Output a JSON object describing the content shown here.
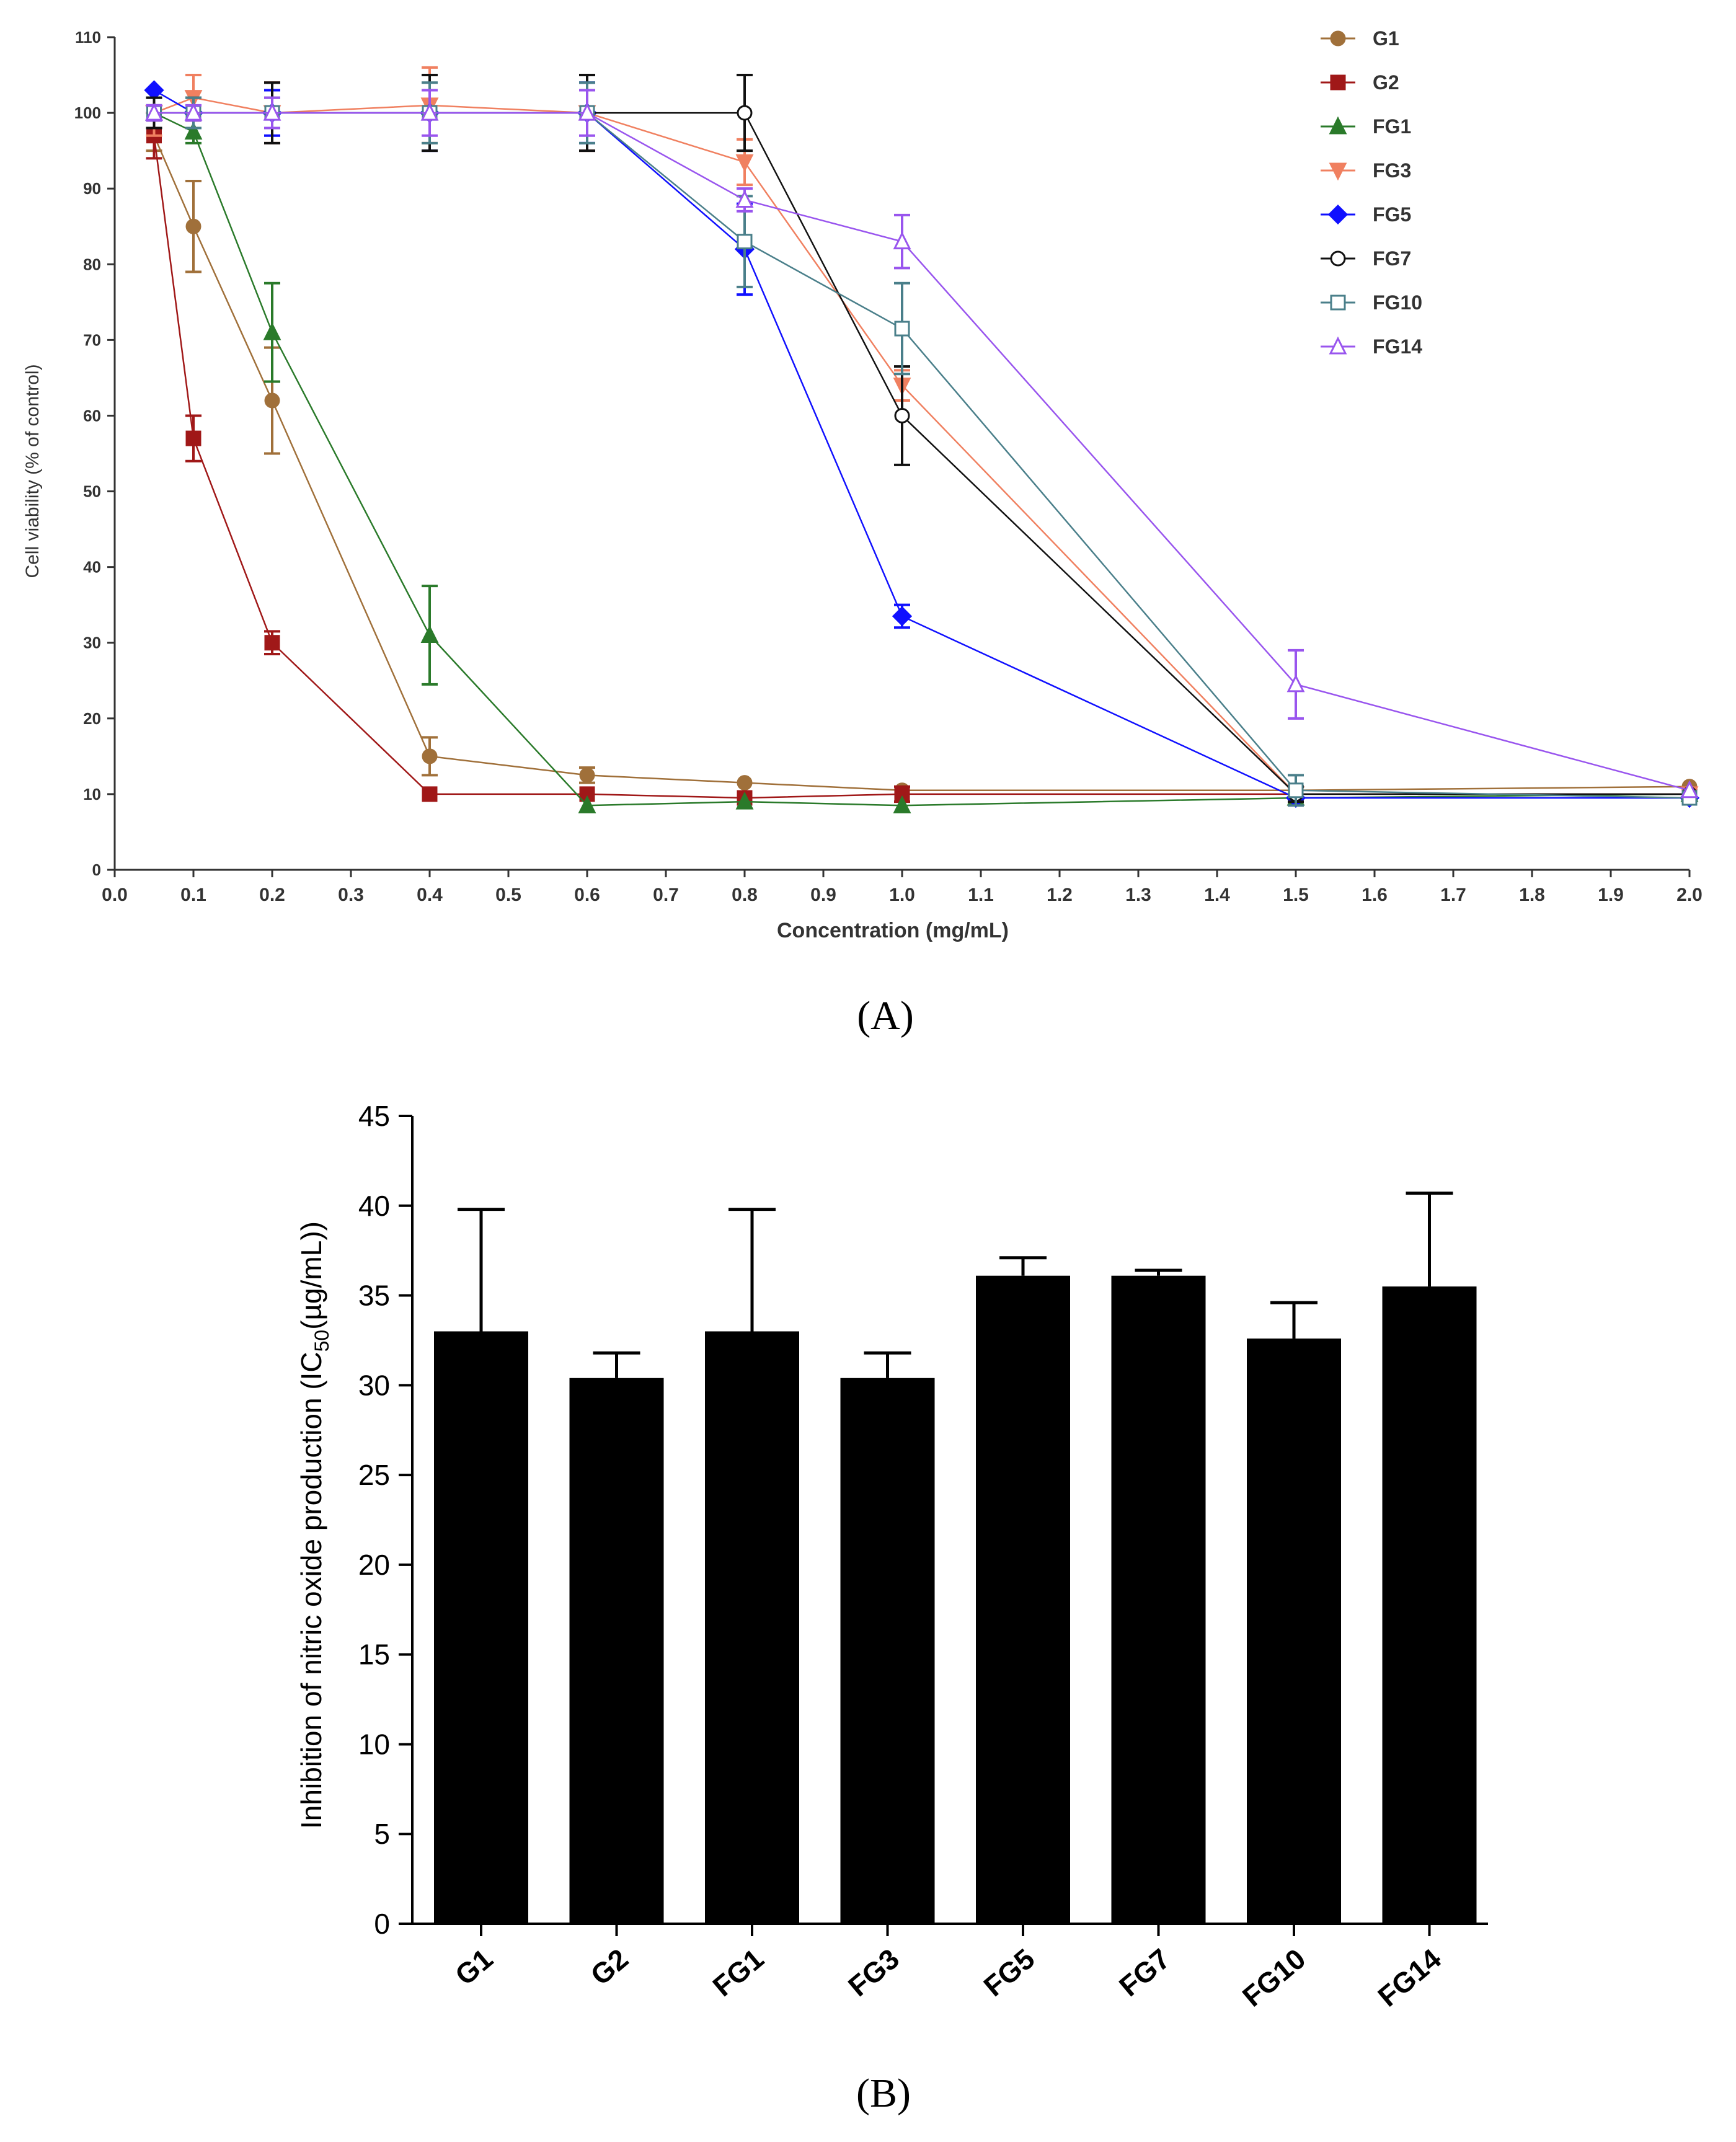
{
  "colors": {
    "G1": "#a0703a",
    "G2": "#a01818",
    "FG1": "#2a7a2a",
    "FG3": "#f08060",
    "FG5": "#1010ff",
    "FG7": "#111111",
    "FG10": "#4a7f8a",
    "FG14": "#9955ee",
    "bars": "#000000"
  },
  "chart_data": [
    {
      "type": "line",
      "panel_label": "(A)",
      "title": "",
      "xlabel": "Concentration (mg/mL)",
      "ylabel": "Cell viability (% of control)",
      "xlim": [
        0,
        2.0
      ],
      "ylim": [
        0,
        110
      ],
      "x_ticks": [
        "0.0",
        "0.1",
        "0.2",
        "0.3",
        "0.4",
        "0.5",
        "0.6",
        "0.7",
        "0.8",
        "0.9",
        "1.0",
        "1.1",
        "1.2",
        "1.3",
        "1.4",
        "1.5",
        "1.6",
        "1.7",
        "1.8",
        "1.9",
        "2.0"
      ],
      "y_ticks": [
        "0",
        "10",
        "20",
        "30",
        "40",
        "50",
        "60",
        "70",
        "80",
        "90",
        "100",
        "110"
      ],
      "legend_position": "top-right",
      "series": [
        {
          "name": "G1",
          "marker": "circle-filled",
          "x": [
            0.05,
            0.1,
            0.2,
            0.4,
            0.6,
            0.8,
            1.0,
            1.5,
            2.0
          ],
          "y": [
            97,
            85,
            62,
            15,
            12.5,
            11.5,
            10.5,
            10.5,
            11
          ],
          "err": [
            2,
            6,
            7,
            2.5,
            1,
            0,
            0,
            0,
            0
          ]
        },
        {
          "name": "G2",
          "marker": "square-filled",
          "x": [
            0.05,
            0.1,
            0.2,
            0.4,
            0.6,
            0.8,
            1.0,
            1.5,
            2.0
          ],
          "y": [
            97,
            57,
            30,
            10,
            10,
            9.5,
            10,
            10,
            10
          ],
          "err": [
            3,
            3,
            1.5,
            0,
            0,
            0,
            1,
            0,
            0
          ]
        },
        {
          "name": "FG1",
          "marker": "triangle-up-filled",
          "x": [
            0.05,
            0.1,
            0.2,
            0.4,
            0.6,
            0.8,
            1.0,
            1.5,
            2.0
          ],
          "y": [
            100,
            97.5,
            71,
            31,
            8.5,
            9,
            8.5,
            9.5,
            10
          ],
          "err": [
            2,
            1.5,
            6.5,
            6.5,
            0,
            0,
            0,
            0,
            0
          ]
        },
        {
          "name": "FG3",
          "marker": "triangle-down-filled",
          "x": [
            0.05,
            0.1,
            0.2,
            0.4,
            0.6,
            0.8,
            1.0,
            1.5,
            2.0
          ],
          "y": [
            100,
            102,
            100,
            101,
            100,
            93.5,
            64,
            10,
            10
          ],
          "err": [
            3,
            3,
            4,
            5,
            5,
            3,
            2,
            1,
            0
          ]
        },
        {
          "name": "FG5",
          "marker": "diamond-filled",
          "x": [
            0.05,
            0.1,
            0.2,
            0.4,
            0.6,
            0.8,
            1.0,
            1.5,
            2.0
          ],
          "y": [
            103,
            100,
            100,
            100,
            100,
            82,
            33.5,
            9.5,
            9.5
          ],
          "err": [
            0,
            0,
            3,
            5,
            4,
            6,
            1.5,
            0,
            0
          ]
        },
        {
          "name": "FG7",
          "marker": "circle-open",
          "x": [
            0.05,
            0.1,
            0.2,
            0.4,
            0.6,
            0.8,
            1.0,
            1.5,
            2.0
          ],
          "y": [
            100,
            100,
            100,
            100,
            100,
            100,
            60,
            10,
            10
          ],
          "err": [
            2,
            2,
            4,
            5,
            5,
            5,
            6.5,
            1,
            0
          ]
        },
        {
          "name": "FG10",
          "marker": "square-open",
          "x": [
            0.05,
            0.1,
            0.2,
            0.4,
            0.6,
            0.8,
            1.0,
            1.5,
            2.0
          ],
          "y": [
            100,
            100,
            100,
            100,
            100,
            83,
            71.5,
            10.5,
            9.5
          ],
          "err": [
            1,
            2,
            2,
            4,
            4,
            6,
            6,
            2,
            0
          ]
        },
        {
          "name": "FG14",
          "marker": "triangle-up-open",
          "x": [
            0.05,
            0.1,
            0.2,
            0.4,
            0.6,
            0.8,
            1.0,
            1.5,
            2.0
          ],
          "y": [
            100,
            100,
            100,
            100,
            100,
            88.5,
            83,
            24.5,
            10.5
          ],
          "err": [
            1,
            1,
            2,
            3,
            3,
            1.5,
            3.5,
            4.5,
            0
          ]
        }
      ]
    },
    {
      "type": "bar",
      "panel_label": "(B)",
      "title": "",
      "xlabel": "",
      "ylabel_main": "Inhibition of nitric oxide production (IC",
      "ylabel_sub": "50",
      "ylabel_tail": "(µg/mL))",
      "ylim": [
        0,
        45
      ],
      "y_ticks": [
        "0",
        "5",
        "10",
        "15",
        "20",
        "25",
        "30",
        "35",
        "40",
        "45"
      ],
      "categories": [
        "G1",
        "G2",
        "FG1",
        "FG3",
        "FG5",
        "FG7",
        "FG10",
        "FG14"
      ],
      "values": [
        33,
        30.4,
        33,
        30.4,
        36.1,
        36.1,
        32.6,
        35.5
      ],
      "errors": [
        6.8,
        1.4,
        6.8,
        1.4,
        1.0,
        0.3,
        2.0,
        5.2
      ]
    }
  ]
}
